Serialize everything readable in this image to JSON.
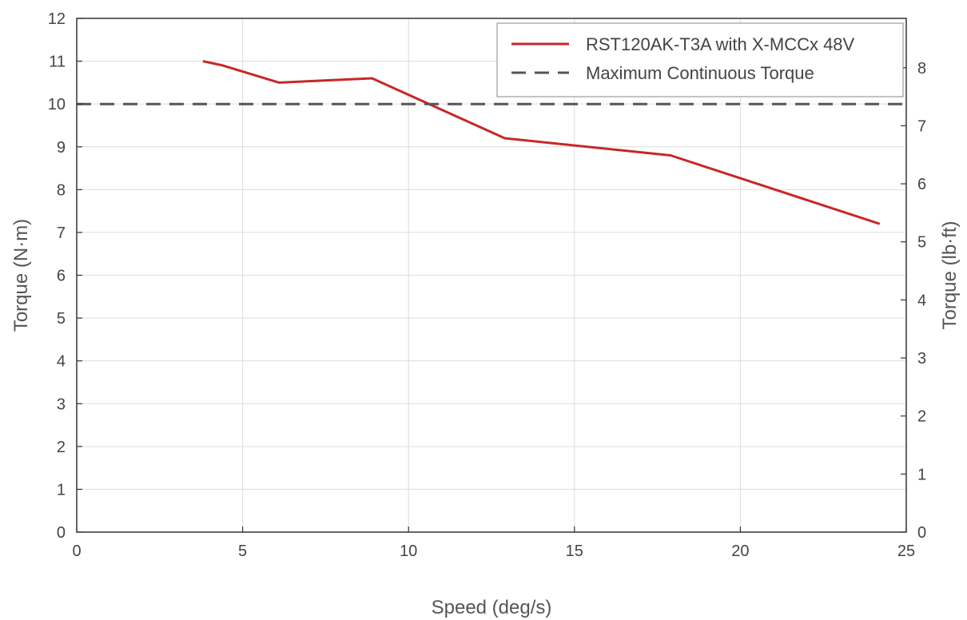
{
  "chart_data": {
    "type": "line",
    "xlabel": "Speed (deg/s)",
    "ylabel": "Torque (N·m)",
    "ylabel_right": "Torque (lb·ft)",
    "xlim": [
      0,
      25
    ],
    "ylim": [
      0,
      12
    ],
    "ylim_right_lbft": [
      0,
      8.85
    ],
    "x_ticks": [
      "0",
      "5",
      "10",
      "15",
      "20",
      "25"
    ],
    "y_ticks": [
      "0",
      "1",
      "2",
      "3",
      "4",
      "5",
      "6",
      "7",
      "8",
      "9",
      "10",
      "11",
      "12"
    ],
    "y_ticks_right": [
      "0",
      "1",
      "2",
      "3",
      "4",
      "5",
      "6",
      "7",
      "8"
    ],
    "grid": true,
    "legend_position": "top-right",
    "series": [
      {
        "name": "RST120AK-T3A with X-MCCx 48V",
        "color": "#c62828",
        "style": "solid",
        "x": [
          3.8,
          4.4,
          6.1,
          8.9,
          12.9,
          17.9,
          24.2
        ],
        "y": [
          11.0,
          10.9,
          10.5,
          10.6,
          9.2,
          8.8,
          7.2
        ]
      },
      {
        "name": "Maximum Continuous Torque",
        "color": "#555555",
        "style": "dashed",
        "x": [
          0,
          25
        ],
        "y": [
          10,
          10
        ]
      }
    ]
  }
}
